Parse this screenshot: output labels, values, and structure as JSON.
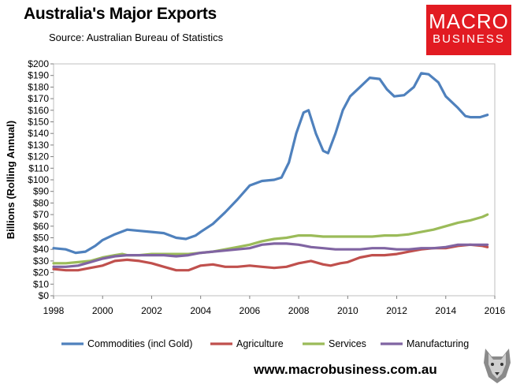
{
  "header": {
    "title": "Australia's Major Exports",
    "source": "Source:  Australian Bureau of Statistics"
  },
  "logo": {
    "line1": "MACRO",
    "line2": "BUSINESS"
  },
  "footer": {
    "website": "www.macrobusiness.com.au"
  },
  "colors": {
    "commodities": "#4f81bd",
    "agriculture": "#c0504d",
    "services": "#9bbb59",
    "manufacturing": "#8064a2",
    "logo_bg": "#e21b22"
  },
  "chart_data": {
    "type": "line",
    "ylabel": "Billions (Rolling Annual)",
    "xlim": [
      1998,
      2016
    ],
    "ylim": [
      0,
      200
    ],
    "x_ticks": [
      "1998",
      "2000",
      "2002",
      "2004",
      "2006",
      "2008",
      "2010",
      "2012",
      "2014",
      "2016"
    ],
    "y_ticks": [
      "$0",
      "$10",
      "$20",
      "$30",
      "$40",
      "$50",
      "$60",
      "$70",
      "$80",
      "$90",
      "$100",
      "$110",
      "$120",
      "$130",
      "$140",
      "$150",
      "$160",
      "$170",
      "$180",
      "$190",
      "$200"
    ],
    "grid": false,
    "legend": "bottom",
    "series": [
      {
        "name": "Commodities (incl Gold)",
        "points": [
          [
            1998,
            41
          ],
          [
            1998.5,
            40
          ],
          [
            1998.9,
            37
          ],
          [
            1999.3,
            38
          ],
          [
            1999.7,
            43
          ],
          [
            2000,
            48
          ],
          [
            2000.5,
            53
          ],
          [
            2001,
            57
          ],
          [
            2001.5,
            56
          ],
          [
            2002,
            55
          ],
          [
            2002.5,
            54
          ],
          [
            2003,
            50
          ],
          [
            2003.4,
            49
          ],
          [
            2003.8,
            52
          ],
          [
            2004,
            55
          ],
          [
            2004.5,
            62
          ],
          [
            2005,
            72
          ],
          [
            2005.5,
            83
          ],
          [
            2006,
            95
          ],
          [
            2006.5,
            99
          ],
          [
            2007,
            100
          ],
          [
            2007.3,
            102
          ],
          [
            2007.6,
            115
          ],
          [
            2007.9,
            140
          ],
          [
            2008.2,
            158
          ],
          [
            2008.4,
            160
          ],
          [
            2008.7,
            140
          ],
          [
            2009,
            125
          ],
          [
            2009.2,
            123
          ],
          [
            2009.5,
            140
          ],
          [
            2009.8,
            160
          ],
          [
            2010.1,
            172
          ],
          [
            2010.5,
            180
          ],
          [
            2010.9,
            188
          ],
          [
            2011.3,
            187
          ],
          [
            2011.6,
            178
          ],
          [
            2011.9,
            172
          ],
          [
            2012.3,
            173
          ],
          [
            2012.7,
            180
          ],
          [
            2013,
            192
          ],
          [
            2013.3,
            191
          ],
          [
            2013.7,
            184
          ],
          [
            2014,
            172
          ],
          [
            2014.5,
            162
          ],
          [
            2014.8,
            155
          ],
          [
            2015,
            154
          ],
          [
            2015.4,
            154
          ],
          [
            2015.7,
            156
          ]
        ]
      },
      {
        "name": "Agriculture",
        "points": [
          [
            1998,
            23
          ],
          [
            1998.5,
            22
          ],
          [
            1999,
            22
          ],
          [
            1999.5,
            24
          ],
          [
            2000,
            26
          ],
          [
            2000.5,
            30
          ],
          [
            2001,
            31
          ],
          [
            2001.5,
            30
          ],
          [
            2002,
            28
          ],
          [
            2002.5,
            25
          ],
          [
            2003,
            22
          ],
          [
            2003.5,
            22
          ],
          [
            2004,
            26
          ],
          [
            2004.5,
            27
          ],
          [
            2005,
            25
          ],
          [
            2005.5,
            25
          ],
          [
            2006,
            26
          ],
          [
            2006.5,
            25
          ],
          [
            2007,
            24
          ],
          [
            2007.5,
            25
          ],
          [
            2008,
            28
          ],
          [
            2008.5,
            30
          ],
          [
            2009,
            27
          ],
          [
            2009.3,
            26
          ],
          [
            2009.7,
            28
          ],
          [
            2010,
            29
          ],
          [
            2010.5,
            33
          ],
          [
            2011,
            35
          ],
          [
            2011.5,
            35
          ],
          [
            2012,
            36
          ],
          [
            2012.5,
            38
          ],
          [
            2013,
            40
          ],
          [
            2013.5,
            41
          ],
          [
            2014,
            41
          ],
          [
            2014.5,
            43
          ],
          [
            2015,
            44
          ],
          [
            2015.5,
            43
          ],
          [
            2015.7,
            42
          ]
        ]
      },
      {
        "name": "Services",
        "points": [
          [
            1998,
            28
          ],
          [
            1998.5,
            28
          ],
          [
            1999,
            29
          ],
          [
            1999.5,
            30
          ],
          [
            2000,
            33
          ],
          [
            2000.5,
            35
          ],
          [
            2000.8,
            36
          ],
          [
            2001,
            35
          ],
          [
            2001.5,
            35
          ],
          [
            2002,
            36
          ],
          [
            2002.5,
            36
          ],
          [
            2003,
            36
          ],
          [
            2003.5,
            36
          ],
          [
            2004,
            37
          ],
          [
            2004.5,
            38
          ],
          [
            2005,
            40
          ],
          [
            2005.5,
            42
          ],
          [
            2006,
            44
          ],
          [
            2006.5,
            47
          ],
          [
            2007,
            49
          ],
          [
            2007.5,
            50
          ],
          [
            2008,
            52
          ],
          [
            2008.5,
            52
          ],
          [
            2009,
            51
          ],
          [
            2009.5,
            51
          ],
          [
            2010,
            51
          ],
          [
            2010.5,
            51
          ],
          [
            2011,
            51
          ],
          [
            2011.5,
            52
          ],
          [
            2012,
            52
          ],
          [
            2012.5,
            53
          ],
          [
            2013,
            55
          ],
          [
            2013.5,
            57
          ],
          [
            2014,
            60
          ],
          [
            2014.5,
            63
          ],
          [
            2015,
            65
          ],
          [
            2015.5,
            68
          ],
          [
            2015.7,
            70
          ]
        ]
      },
      {
        "name": "Manufacturing",
        "points": [
          [
            1998,
            25
          ],
          [
            1998.5,
            25
          ],
          [
            1999,
            26
          ],
          [
            1999.5,
            29
          ],
          [
            2000,
            32
          ],
          [
            2000.5,
            34
          ],
          [
            2001,
            35
          ],
          [
            2001.5,
            35
          ],
          [
            2002,
            35
          ],
          [
            2002.5,
            35
          ],
          [
            2003,
            34
          ],
          [
            2003.5,
            35
          ],
          [
            2004,
            37
          ],
          [
            2004.5,
            38
          ],
          [
            2005,
            39
          ],
          [
            2005.5,
            40
          ],
          [
            2006,
            41
          ],
          [
            2006.5,
            44
          ],
          [
            2007,
            45
          ],
          [
            2007.5,
            45
          ],
          [
            2008,
            44
          ],
          [
            2008.5,
            42
          ],
          [
            2009,
            41
          ],
          [
            2009.5,
            40
          ],
          [
            2010,
            40
          ],
          [
            2010.5,
            40
          ],
          [
            2011,
            41
          ],
          [
            2011.5,
            41
          ],
          [
            2012,
            40
          ],
          [
            2012.5,
            40
          ],
          [
            2013,
            41
          ],
          [
            2013.5,
            41
          ],
          [
            2014,
            42
          ],
          [
            2014.5,
            44
          ],
          [
            2015,
            44
          ],
          [
            2015.5,
            44
          ],
          [
            2015.7,
            44
          ]
        ]
      }
    ]
  }
}
